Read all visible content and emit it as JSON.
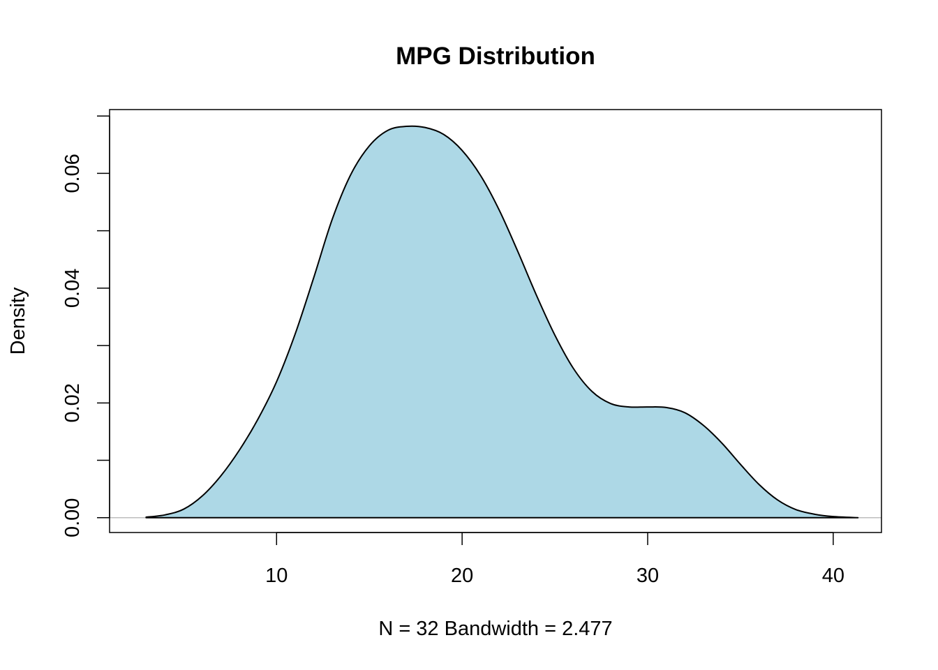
{
  "chart_data": {
    "type": "area",
    "title": "MPG Distribution",
    "xlabel": "N = 32   Bandwidth = 2.477",
    "ylabel": "Density",
    "xlim": [
      1.0,
      42.6
    ],
    "ylim": [
      -0.00258,
      0.07112
    ],
    "x_ticks": [
      10,
      20,
      30,
      40
    ],
    "x_tick_labels": [
      "10",
      "20",
      "30",
      "40"
    ],
    "y_ticks": [
      0.0,
      0.01,
      0.02,
      0.03,
      0.04,
      0.05,
      0.06,
      0.07
    ],
    "y_tick_labels": [
      "0.00",
      "",
      "0.02",
      "",
      "0.04",
      "",
      "0.06",
      ""
    ],
    "grid": false,
    "fill_color": "#add8e6",
    "line_color": "#000000",
    "series": [
      {
        "x": [
          2.97,
          4,
          5,
          6,
          7,
          8,
          9,
          10,
          11,
          12,
          13,
          14,
          15,
          16,
          17,
          18,
          19,
          20,
          21,
          22,
          23,
          24,
          25,
          26,
          27,
          28,
          29,
          30,
          31,
          32,
          33,
          34,
          35,
          36,
          37,
          38,
          39,
          40,
          41.33
        ],
        "y": [
          0.0001,
          0.0005,
          0.0015,
          0.0038,
          0.0073,
          0.0118,
          0.0172,
          0.0237,
          0.032,
          0.0418,
          0.052,
          0.0598,
          0.0648,
          0.0675,
          0.0682,
          0.068,
          0.0668,
          0.064,
          0.0596,
          0.0536,
          0.0464,
          0.0388,
          0.0318,
          0.026,
          0.022,
          0.0199,
          0.0193,
          0.0193,
          0.0192,
          0.0183,
          0.0161,
          0.013,
          0.0093,
          0.0058,
          0.0031,
          0.0014,
          0.0006,
          0.0002,
          0.0
        ]
      }
    ]
  }
}
